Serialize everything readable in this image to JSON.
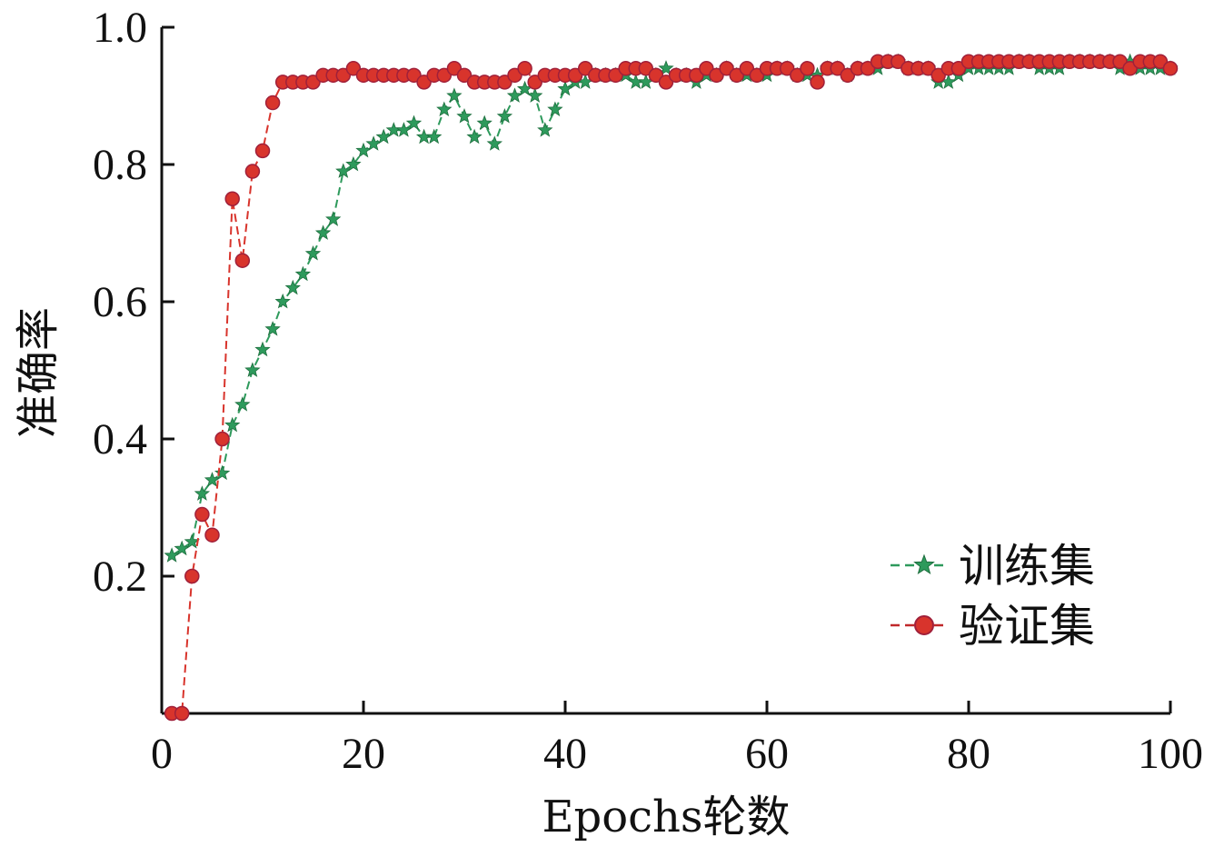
{
  "chart_data": {
    "type": "line",
    "xlabel": "Epochs轮数",
    "ylabel": "准确率",
    "xlim": [
      0,
      100
    ],
    "ylim": [
      0.0,
      1.0
    ],
    "x_ticks": [
      "0",
      "20",
      "40",
      "60",
      "80",
      "100"
    ],
    "y_ticks": [
      "0.2",
      "0.4",
      "0.6",
      "0.8",
      "1.0"
    ],
    "grid": false,
    "legend_position": "bottom-right",
    "series": [
      {
        "name": "训练集",
        "color": "#2e9a5c",
        "marker": "star",
        "x": [
          1,
          2,
          3,
          4,
          5,
          6,
          7,
          8,
          9,
          10,
          11,
          12,
          13,
          14,
          15,
          16,
          17,
          18,
          19,
          20,
          21,
          22,
          23,
          24,
          25,
          26,
          27,
          28,
          29,
          30,
          31,
          32,
          33,
          34,
          35,
          36,
          37,
          38,
          39,
          40,
          41,
          42,
          43,
          44,
          45,
          46,
          47,
          48,
          49,
          50,
          51,
          52,
          53,
          54,
          55,
          56,
          57,
          58,
          59,
          60,
          61,
          62,
          63,
          64,
          65,
          66,
          67,
          68,
          69,
          70,
          71,
          72,
          73,
          74,
          75,
          76,
          77,
          78,
          79,
          80,
          81,
          82,
          83,
          84,
          85,
          86,
          87,
          88,
          89,
          90,
          91,
          92,
          93,
          94,
          95,
          96,
          97,
          98,
          99,
          100
        ],
        "y": [
          0.23,
          0.24,
          0.25,
          0.32,
          0.34,
          0.35,
          0.42,
          0.45,
          0.5,
          0.53,
          0.56,
          0.6,
          0.62,
          0.64,
          0.67,
          0.7,
          0.72,
          0.79,
          0.8,
          0.82,
          0.83,
          0.84,
          0.85,
          0.85,
          0.86,
          0.84,
          0.84,
          0.88,
          0.9,
          0.87,
          0.84,
          0.86,
          0.83,
          0.87,
          0.9,
          0.91,
          0.9,
          0.85,
          0.88,
          0.91,
          0.92,
          0.92,
          0.93,
          0.93,
          0.93,
          0.93,
          0.92,
          0.92,
          0.93,
          0.94,
          0.93,
          0.93,
          0.92,
          0.93,
          0.93,
          0.94,
          0.93,
          0.93,
          0.93,
          0.93,
          0.94,
          0.94,
          0.93,
          0.93,
          0.93,
          0.94,
          0.94,
          0.93,
          0.94,
          0.94,
          0.94,
          0.95,
          0.95,
          0.94,
          0.94,
          0.94,
          0.92,
          0.92,
          0.93,
          0.94,
          0.94,
          0.94,
          0.94,
          0.94,
          0.95,
          0.95,
          0.94,
          0.94,
          0.94,
          0.95,
          0.95,
          0.95,
          0.95,
          0.95,
          0.94,
          0.95,
          0.94,
          0.94,
          0.94,
          0.94
        ]
      },
      {
        "name": "验证集",
        "color": "#d8342c",
        "marker": "circle",
        "x": [
          1,
          2,
          3,
          4,
          5,
          6,
          7,
          8,
          9,
          10,
          11,
          12,
          13,
          14,
          15,
          16,
          17,
          18,
          19,
          20,
          21,
          22,
          23,
          24,
          25,
          26,
          27,
          28,
          29,
          30,
          31,
          32,
          33,
          34,
          35,
          36,
          37,
          38,
          39,
          40,
          41,
          42,
          43,
          44,
          45,
          46,
          47,
          48,
          49,
          50,
          51,
          52,
          53,
          54,
          55,
          56,
          57,
          58,
          59,
          60,
          61,
          62,
          63,
          64,
          65,
          66,
          67,
          68,
          69,
          70,
          71,
          72,
          73,
          74,
          75,
          76,
          77,
          78,
          79,
          80,
          81,
          82,
          83,
          84,
          85,
          86,
          87,
          88,
          89,
          90,
          91,
          92,
          93,
          94,
          95,
          96,
          97,
          98,
          99,
          100
        ],
        "y": [
          0.0,
          0.0,
          0.2,
          0.29,
          0.26,
          0.4,
          0.75,
          0.66,
          0.79,
          0.82,
          0.89,
          0.92,
          0.92,
          0.92,
          0.92,
          0.93,
          0.93,
          0.93,
          0.94,
          0.93,
          0.93,
          0.93,
          0.93,
          0.93,
          0.93,
          0.92,
          0.93,
          0.93,
          0.94,
          0.93,
          0.92,
          0.92,
          0.92,
          0.92,
          0.93,
          0.94,
          0.92,
          0.93,
          0.93,
          0.93,
          0.93,
          0.94,
          0.93,
          0.93,
          0.93,
          0.94,
          0.94,
          0.94,
          0.93,
          0.92,
          0.93,
          0.93,
          0.93,
          0.94,
          0.93,
          0.94,
          0.93,
          0.94,
          0.93,
          0.94,
          0.94,
          0.94,
          0.93,
          0.94,
          0.92,
          0.94,
          0.94,
          0.93,
          0.94,
          0.94,
          0.95,
          0.95,
          0.95,
          0.94,
          0.94,
          0.94,
          0.93,
          0.94,
          0.94,
          0.95,
          0.95,
          0.95,
          0.95,
          0.95,
          0.95,
          0.95,
          0.95,
          0.95,
          0.95,
          0.95,
          0.95,
          0.95,
          0.95,
          0.95,
          0.95,
          0.94,
          0.95,
          0.95,
          0.95,
          0.94
        ]
      }
    ]
  }
}
